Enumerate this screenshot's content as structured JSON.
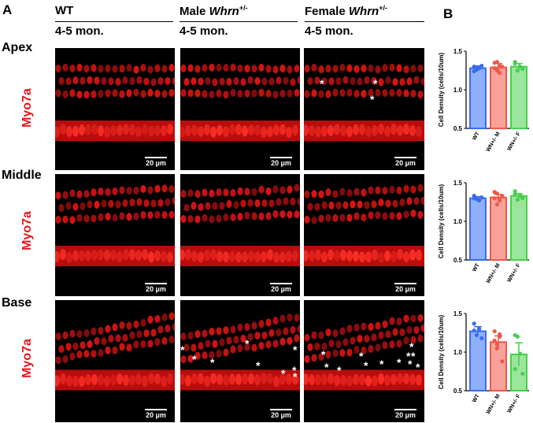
{
  "panel_letters": {
    "a": "A",
    "b": "B"
  },
  "columns": [
    {
      "label_main": "WT",
      "label_sup": "",
      "label_sub": "4-5 mon."
    },
    {
      "label_pre": "Male ",
      "label_italic": "Whrn",
      "label_sup": "+/-",
      "label_sub": "4-5 mon."
    },
    {
      "label_pre": "Female ",
      "label_italic": "Whrn",
      "label_sup": "+/-",
      "label_sub": "4-5 mon."
    }
  ],
  "rows": [
    {
      "label": "Apex",
      "marker": "Myo7a"
    },
    {
      "label": "Middle",
      "marker": "Myo7a"
    },
    {
      "label": "Base",
      "marker": "Myo7a"
    }
  ],
  "scale_bar_label": "20 µm",
  "asterisk": "*",
  "chart_data": [
    {
      "type": "bar",
      "region": "Apex",
      "categories": [
        "WT",
        "WN+/- M",
        "WN+/- F"
      ],
      "ylabel": "Cell Density (cells/10um)",
      "ylim": [
        0.5,
        1.5
      ],
      "yticks": [
        "0.5",
        "1.0",
        "1.5"
      ],
      "colors": [
        "#3b6cf0",
        "#f0584a",
        "#46cf4a"
      ],
      "fill_colors": [
        "#8fb0f7",
        "#f7a39b",
        "#9be59c"
      ],
      "values": [
        1.28,
        1.29,
        1.3
      ],
      "errors": [
        0.03,
        0.05,
        0.04
      ],
      "points": [
        [
          1.3,
          1.26,
          1.28,
          1.31,
          1.24,
          1.29
        ],
        [
          1.35,
          1.25,
          1.22,
          1.3,
          1.28,
          1.36,
          1.31
        ],
        [
          1.36,
          1.25,
          1.3,
          1.27,
          1.34
        ]
      ]
    },
    {
      "type": "bar",
      "region": "Middle",
      "categories": [
        "WT",
        "WN+/- M",
        "WN+/- F"
      ],
      "ylabel": "Cell Density  (cells/10um)",
      "ylim": [
        0.5,
        1.5
      ],
      "yticks": [
        "0.5",
        "1.0",
        "1.5"
      ],
      "colors": [
        "#3b6cf0",
        "#f0584a",
        "#46cf4a"
      ],
      "fill_colors": [
        "#8fb0f7",
        "#f7a39b",
        "#9be59c"
      ],
      "values": [
        1.3,
        1.31,
        1.33
      ],
      "errors": [
        0.02,
        0.04,
        0.03
      ],
      "points": [
        [
          1.33,
          1.29,
          1.27,
          1.31,
          1.3
        ],
        [
          1.38,
          1.22,
          1.27,
          1.33,
          1.3,
          1.36,
          1.29
        ],
        [
          1.39,
          1.28,
          1.33,
          1.3,
          1.35
        ]
      ]
    },
    {
      "type": "bar",
      "region": "Base",
      "categories": [
        "WT",
        "WN+/- M",
        "WN+/- F"
      ],
      "ylabel": "Cell Density (cells/10um)",
      "ylim": [
        0.5,
        1.5
      ],
      "yticks": [
        "0.5",
        "1.0",
        "1.5"
      ],
      "colors": [
        "#3b6cf0",
        "#f0584a",
        "#46cf4a"
      ],
      "fill_colors": [
        "#8fb0f7",
        "#f7a39b",
        "#9be59c"
      ],
      "values": [
        1.27,
        1.13,
        0.97
      ],
      "errors": [
        0.06,
        0.08,
        0.15
      ],
      "points": [
        [
          1.37,
          1.22,
          1.3,
          1.18,
          1.28
        ],
        [
          1.27,
          1.05,
          1.2,
          0.88,
          1.15,
          1.1,
          1.23
        ],
        [
          1.22,
          1.2,
          0.98,
          0.72,
          0.78
        ]
      ]
    }
  ]
}
